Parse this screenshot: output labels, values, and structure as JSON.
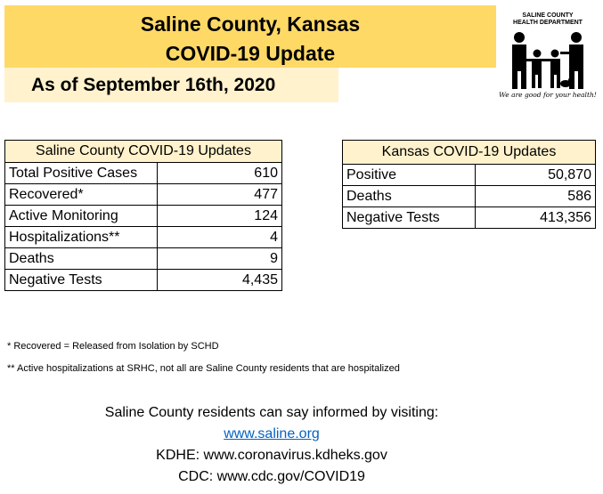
{
  "header": {
    "title_line1": "Saline County, Kansas",
    "title_line2": "COVID-19 Update",
    "date": "As of September 16th, 2020"
  },
  "logo": {
    "line1": "SALINE COUNTY",
    "line2": "HEALTH DEPARTMENT",
    "slogan": "We are good for your health!",
    "icon": "family-icon"
  },
  "saline_table": {
    "header": "Saline County COVID-19 Updates",
    "rows": [
      {
        "label": "Total Positive Cases",
        "value": "610"
      },
      {
        "label": "Recovered*",
        "value": "477"
      },
      {
        "label": "Active Monitoring",
        "value": "124"
      },
      {
        "label": "Hospitalizations**",
        "value": "4"
      },
      {
        "label": "Deaths",
        "value": "9"
      },
      {
        "label": "Negative Tests",
        "value": "4,435"
      }
    ]
  },
  "kansas_table": {
    "header": "Kansas COVID-19 Updates",
    "rows": [
      {
        "label": "Positive",
        "value": "50,870"
      },
      {
        "label": "Deaths",
        "value": "586"
      },
      {
        "label": "Negative Tests",
        "value": "413,356"
      }
    ]
  },
  "notes": {
    "recovered": "* Recovered = Released from Isolation by SCHD",
    "hospitalizations": "** Active hospitalizations at SRHC, not all are Saline County residents that are hospitalized"
  },
  "info": {
    "intro": "Saline County residents can say informed by visiting:",
    "link": "www.saline.org",
    "kdhe": "KDHE:  www.coronavirus.kdheks.gov",
    "cdc": "CDC:  www.cdc.gov/COVID19"
  },
  "colors": {
    "title_banner": "#ffd966",
    "date_banner": "#fff2cc",
    "table_header": "#fff2cc",
    "link": "#0563c1"
  }
}
